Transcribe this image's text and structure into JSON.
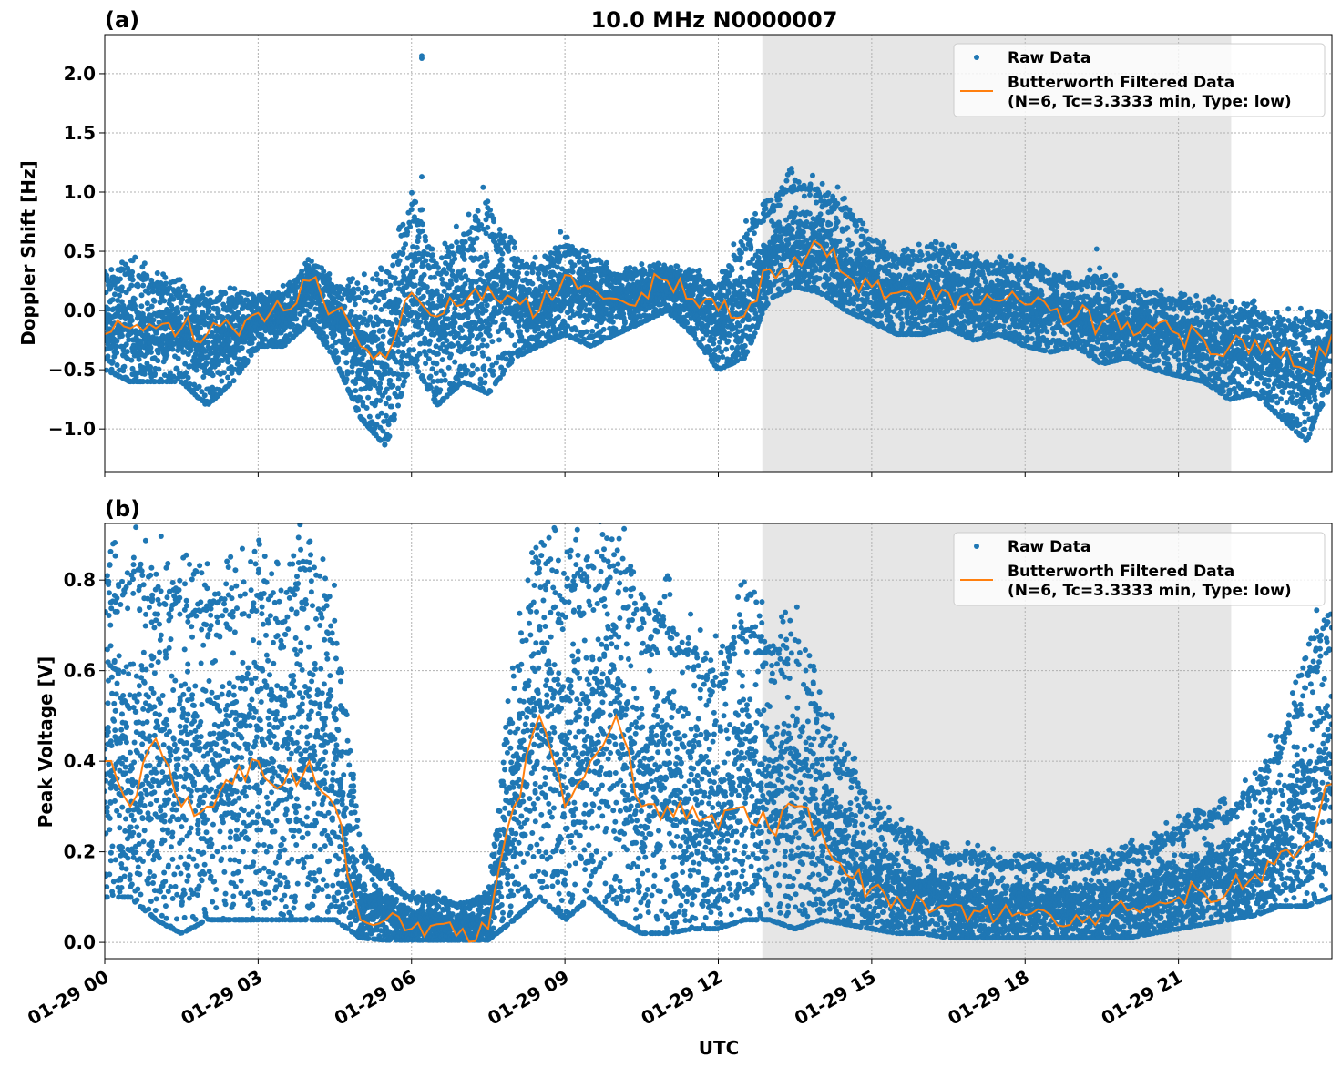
{
  "chart_data": [
    {
      "type": "scatter",
      "panel_label": "(a)",
      "title": "10.0 MHz N0000007",
      "xlabel": "",
      "ylabel": "Doppler Shift [Hz]",
      "ylim": [
        -1.36,
        2.33
      ],
      "yticks": [
        -1.0,
        -0.5,
        0.0,
        0.5,
        1.0,
        1.5,
        2.0
      ],
      "ytick_labels": [
        "−1.0",
        "−0.5",
        "0.0",
        "0.5",
        "1.0",
        "1.5",
        "2.0"
      ],
      "xlim_hours": [
        0,
        24
      ],
      "shaded_region_hours": [
        12.86,
        22.03
      ],
      "shade_color": "#e6e6e6",
      "grid": true,
      "legend_position": "top-right",
      "legend": [
        "Raw Data",
        "Butterworth Filtered Data",
        "(N=6, Tc=3.3333 min, Type: low)"
      ],
      "x_hours": [
        0,
        0.5,
        1,
        1.5,
        2,
        2.5,
        3,
        3.5,
        4,
        4.5,
        5,
        5.5,
        6,
        6.5,
        7,
        7.5,
        8,
        8.5,
        9,
        9.5,
        10,
        10.5,
        11,
        11.5,
        12,
        12.5,
        13,
        13.5,
        14,
        14.5,
        15,
        15.5,
        16,
        16.5,
        17,
        17.5,
        18,
        18.5,
        19,
        19.5,
        20,
        20.5,
        21,
        21.5,
        22,
        22.5,
        23,
        23.5,
        24
      ],
      "series": [
        {
          "name": "Butterworth Filtered Data",
          "color": "#ff7f0e",
          "values": [
            -0.2,
            -0.15,
            -0.15,
            -0.15,
            -0.2,
            -0.15,
            -0.02,
            0.0,
            0.25,
            0.0,
            -0.3,
            -0.4,
            0.15,
            -0.05,
            0.05,
            0.2,
            0.1,
            0.0,
            0.3,
            0.2,
            0.1,
            0.15,
            0.25,
            0.1,
            0.0,
            -0.05,
            0.35,
            0.45,
            0.55,
            0.3,
            0.2,
            0.15,
            0.1,
            0.15,
            0.05,
            0.08,
            0.05,
            0.0,
            -0.05,
            -0.1,
            -0.1,
            -0.15,
            -0.2,
            -0.25,
            -0.3,
            -0.25,
            -0.4,
            -0.5,
            -0.2
          ]
        },
        {
          "name": "Raw Data",
          "color": "#1f77b4",
          "low": [
            -0.5,
            -0.6,
            -0.6,
            -0.6,
            -0.8,
            -0.6,
            -0.3,
            -0.3,
            -0.1,
            -0.4,
            -0.9,
            -1.15,
            -0.4,
            -0.8,
            -0.6,
            -0.7,
            -0.4,
            -0.3,
            -0.2,
            -0.3,
            -0.2,
            -0.1,
            0.0,
            -0.2,
            -0.5,
            -0.4,
            0.1,
            0.2,
            0.15,
            0.0,
            -0.1,
            -0.2,
            -0.2,
            -0.15,
            -0.25,
            -0.2,
            -0.3,
            -0.35,
            -0.3,
            -0.45,
            -0.4,
            -0.5,
            -0.55,
            -0.6,
            -0.75,
            -0.7,
            -0.9,
            -1.1,
            -0.6
          ],
          "high": [
            0.25,
            0.35,
            0.25,
            0.15,
            0.1,
            0.1,
            0.1,
            0.15,
            0.4,
            0.2,
            0.2,
            0.2,
            0.9,
            0.4,
            0.6,
            0.8,
            0.5,
            0.35,
            0.6,
            0.4,
            0.3,
            0.35,
            0.35,
            0.3,
            0.2,
            0.6,
            0.9,
            1.15,
            1.0,
            0.9,
            0.55,
            0.45,
            0.5,
            0.5,
            0.4,
            0.4,
            0.35,
            0.3,
            0.25,
            0.3,
            0.15,
            0.1,
            0.1,
            0.05,
            0.0,
            0.0,
            -0.1,
            -0.1,
            -0.05
          ]
        }
      ],
      "outliers": [
        [
          6.2,
          2.15
        ],
        [
          6.2,
          2.13
        ],
        [
          6.2,
          1.13
        ],
        [
          7.4,
          1.04
        ],
        [
          19.4,
          0.52
        ]
      ]
    },
    {
      "type": "scatter",
      "panel_label": "(b)",
      "xlabel": "UTC",
      "ylabel": "Peak Voltage [V]",
      "ylim": [
        -0.036,
        0.925
      ],
      "yticks": [
        0.0,
        0.2,
        0.4,
        0.6,
        0.8
      ],
      "ytick_labels": [
        "0.0",
        "0.2",
        "0.4",
        "0.6",
        "0.8"
      ],
      "xlim_hours": [
        0,
        24
      ],
      "xticks_hours": [
        0,
        3,
        6,
        9,
        12,
        15,
        18,
        21
      ],
      "xtick_labels": [
        "01-29 00",
        "01-29 03",
        "01-29 06",
        "01-29 09",
        "01-29 12",
        "01-29 15",
        "01-29 18",
        "01-29 21"
      ],
      "shaded_region_hours": [
        12.86,
        22.03
      ],
      "shade_color": "#e6e6e6",
      "grid": true,
      "legend_position": "top-right",
      "legend": [
        "Raw Data",
        "Butterworth Filtered Data",
        "(N=6, Tc=3.3333 min, Type: low)"
      ],
      "x_hours": [
        0,
        0.5,
        1,
        1.5,
        2,
        2.5,
        3,
        3.5,
        4,
        4.5,
        5,
        5.5,
        6,
        6.5,
        7,
        7.5,
        8,
        8.5,
        9,
        9.5,
        10,
        10.5,
        11,
        11.5,
        12,
        12.5,
        13,
        13.5,
        14,
        14.5,
        15,
        15.5,
        16,
        16.5,
        17,
        17.5,
        18,
        18.5,
        19,
        19.5,
        20,
        20.5,
        21,
        21.5,
        22,
        22.5,
        23,
        23.5,
        24
      ],
      "series": [
        {
          "name": "Butterworth Filtered Data",
          "color": "#ff7f0e",
          "values": [
            0.4,
            0.3,
            0.45,
            0.3,
            0.3,
            0.35,
            0.4,
            0.35,
            0.4,
            0.3,
            0.05,
            0.05,
            0.03,
            0.04,
            0.03,
            0.03,
            0.3,
            0.5,
            0.3,
            0.4,
            0.5,
            0.3,
            0.3,
            0.3,
            0.25,
            0.3,
            0.25,
            0.3,
            0.25,
            0.15,
            0.12,
            0.1,
            0.09,
            0.08,
            0.07,
            0.06,
            0.06,
            0.06,
            0.06,
            0.06,
            0.07,
            0.08,
            0.1,
            0.11,
            0.12,
            0.15,
            0.2,
            0.22,
            0.35
          ]
        },
        {
          "name": "Raw Data",
          "color": "#1f77b4",
          "low": [
            0.1,
            0.1,
            0.05,
            0.02,
            0.05,
            0.05,
            0.05,
            0.05,
            0.05,
            0.05,
            0.01,
            0.005,
            0.005,
            0.005,
            0.005,
            0.005,
            0.05,
            0.1,
            0.05,
            0.1,
            0.05,
            0.02,
            0.02,
            0.03,
            0.03,
            0.05,
            0.05,
            0.03,
            0.05,
            0.04,
            0.03,
            0.02,
            0.02,
            0.01,
            0.01,
            0.01,
            0.01,
            0.01,
            0.01,
            0.01,
            0.01,
            0.02,
            0.03,
            0.04,
            0.05,
            0.06,
            0.08,
            0.08,
            0.1
          ],
          "high": [
            0.8,
            0.85,
            0.8,
            0.8,
            0.75,
            0.8,
            0.8,
            0.75,
            0.88,
            0.7,
            0.2,
            0.15,
            0.1,
            0.1,
            0.08,
            0.1,
            0.6,
            0.88,
            0.8,
            0.85,
            0.88,
            0.7,
            0.75,
            0.65,
            0.6,
            0.75,
            0.65,
            0.7,
            0.5,
            0.4,
            0.3,
            0.25,
            0.22,
            0.2,
            0.2,
            0.18,
            0.18,
            0.17,
            0.18,
            0.18,
            0.2,
            0.22,
            0.25,
            0.28,
            0.3,
            0.35,
            0.45,
            0.6,
            0.75
          ]
        }
      ]
    }
  ]
}
